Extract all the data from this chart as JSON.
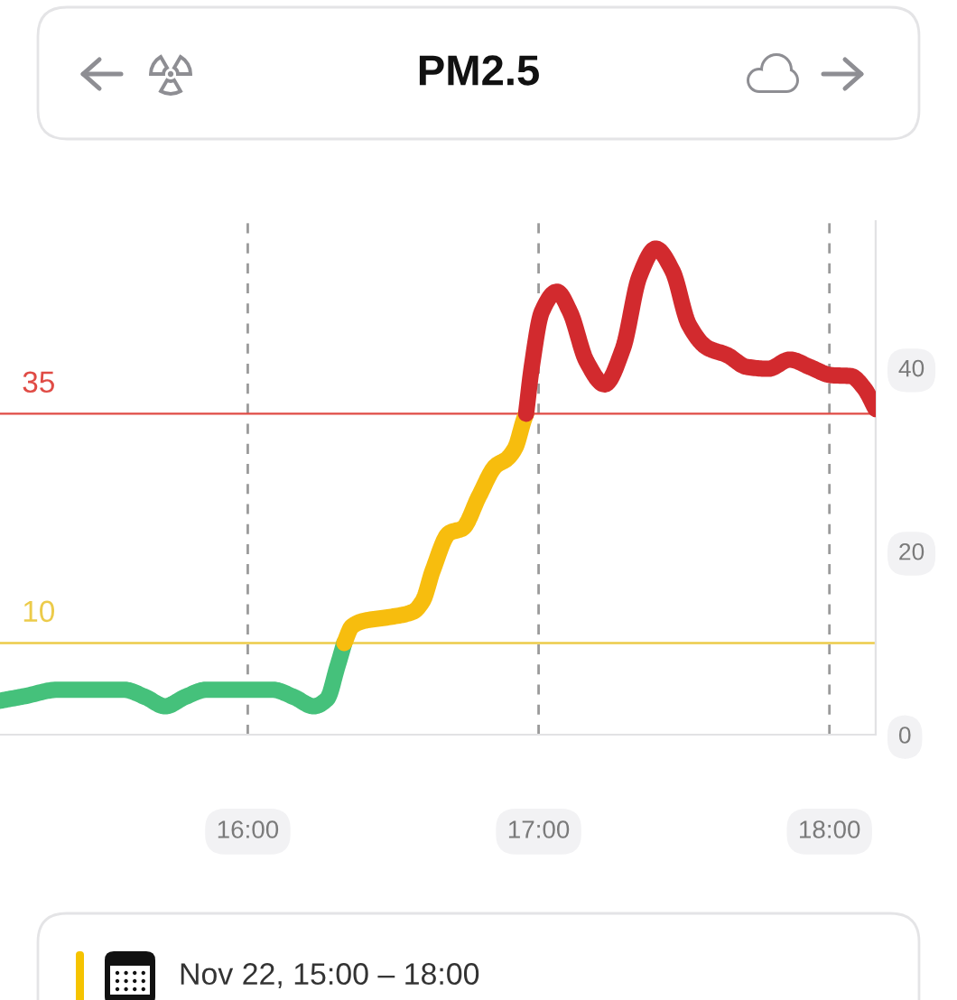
{
  "chart_data": {
    "type": "line",
    "title": "PM2.5",
    "series": [
      {
        "color": "#45c17b",
        "x": [
          15.148,
          15.233,
          15.347,
          15.46,
          15.574,
          15.648,
          15.716,
          15.784,
          15.858,
          15.972,
          16.085,
          16.159,
          16.227,
          16.273,
          16.307,
          16.332
        ],
        "values": [
          3.7,
          4.2,
          4.9,
          4.9,
          4.9,
          4.1,
          3.1,
          4.1,
          4.9,
          4.9,
          4.9,
          4.1,
          3.1,
          3.9,
          7.3,
          10
        ]
      },
      {
        "color": "#f7bd0e",
        "x": [
          16.332,
          16.358,
          16.398,
          16.483,
          16.568,
          16.602,
          16.636,
          16.693,
          16.739,
          16.795,
          16.852,
          16.892,
          16.92,
          16.949,
          16.957
        ],
        "values": [
          10,
          11.8,
          12.4,
          12.8,
          13.4,
          14.6,
          17.9,
          22.0,
          22.5,
          26.0,
          29.3,
          30.1,
          31.3,
          34.3,
          35
        ]
      },
      {
        "color": "#d22a2e",
        "x": [
          16.957,
          16.977,
          17.011,
          17.063,
          17.108,
          17.165,
          17.227,
          17.29,
          17.347,
          17.403,
          17.46,
          17.517,
          17.58,
          17.648,
          17.716,
          17.79,
          17.864,
          17.932,
          18.006,
          18.074,
          18.119,
          18.159
        ],
        "values": [
          35,
          40.2,
          46.1,
          48.3,
          46.1,
          40.7,
          38.2,
          42.1,
          50.0,
          53.0,
          50.6,
          44.7,
          42.2,
          41.4,
          40.1,
          39.9,
          40.9,
          40.1,
          39.2,
          39.1,
          37.8,
          35.5
        ]
      }
    ],
    "xlim": [
      15.148,
      18.159
    ],
    "xticks": [
      {
        "value": 16,
        "label": "16:00"
      },
      {
        "value": 17,
        "label": "17:00"
      },
      {
        "value": 18,
        "label": "18:00"
      }
    ],
    "ylim": [
      0,
      56
    ],
    "yticks": [
      0,
      20,
      40
    ],
    "grid": "x",
    "ref_lines": [
      {
        "axis": "y",
        "value": 35,
        "label": "35",
        "color": "#e04b45"
      },
      {
        "axis": "y",
        "value": 10,
        "label": "10",
        "color": "#eccb4a"
      }
    ],
    "annotations": [
      "Nov 22, 15:00 – 18:00"
    ]
  }
}
